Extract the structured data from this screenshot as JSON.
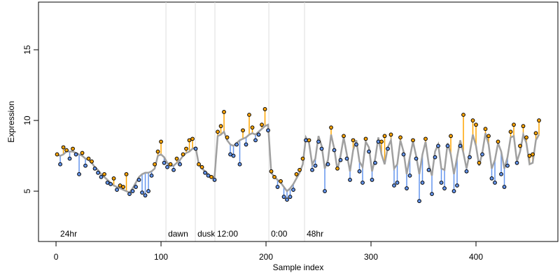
{
  "chart_data": {
    "type": "scatter",
    "x_label": "Sample index",
    "y_label": "Expression",
    "xlim": [
      -16.7,
      478
    ],
    "ylim": [
      1.44,
      18.37
    ],
    "xticks": [
      0,
      100,
      200,
      300,
      400
    ],
    "yticks": [
      5,
      10,
      15
    ],
    "colors": {
      "above": "#ffa500",
      "below": "#6495ed",
      "fit": "#a0a0a0",
      "point": "#000000",
      "marker": "#dddddd",
      "marker_text": "#aaaaaa"
    },
    "markers": [
      {
        "x": 2,
        "label": "24hr",
        "line": false
      },
      {
        "x": 104.7,
        "label": "dawn",
        "line": true
      },
      {
        "x": 132.7,
        "label": "dusk",
        "line": true
      },
      {
        "x": 151.3,
        "label": "12:00",
        "line": true
      },
      {
        "x": 202.7,
        "label": "0:00",
        "line": true
      },
      {
        "x": 236.7,
        "label": "48hr",
        "line": true
      }
    ],
    "x": [
      1,
      4,
      7,
      10,
      13,
      16,
      19,
      22,
      25,
      28,
      31,
      34,
      37,
      40,
      43,
      46,
      49,
      52,
      55,
      58,
      61,
      64,
      67,
      70,
      73,
      76,
      79,
      82,
      85,
      88,
      91,
      94,
      97,
      100,
      103,
      106,
      109,
      112,
      115,
      118,
      121,
      124,
      127,
      130,
      133,
      136,
      139,
      142,
      145,
      148,
      151,
      154,
      157,
      160,
      163,
      166,
      169,
      172,
      175,
      178,
      181,
      184,
      187,
      190,
      193,
      196,
      199,
      202,
      205,
      208,
      211,
      214,
      217,
      220,
      223,
      226,
      229,
      232,
      235,
      238,
      241,
      244,
      247,
      250,
      253,
      256,
      259,
      262,
      265,
      268,
      271,
      274,
      277,
      280,
      283,
      286,
      289,
      292,
      295,
      298,
      301,
      304,
      307,
      310,
      313,
      316,
      319,
      322,
      325,
      328,
      331,
      334,
      337,
      340,
      343,
      346,
      349,
      352,
      355,
      358,
      361,
      364,
      367,
      370,
      373,
      376,
      379,
      382,
      385,
      388,
      391,
      394,
      397,
      400,
      403,
      406,
      409,
      412,
      415,
      418,
      421,
      424,
      427,
      430,
      433,
      436,
      439,
      442,
      445,
      448,
      451,
      454,
      457,
      460
    ],
    "fitted": [
      7.6,
      7.5,
      7.6,
      7.8,
      7.8,
      7.8,
      7.7,
      7.6,
      7.5,
      7.3,
      7.2,
      7.0,
      6.7,
      6.5,
      6.2,
      6.0,
      5.8,
      5.6,
      5.4,
      5.3,
      5.2,
      5.1,
      5.0,
      4.9,
      5.2,
      5.6,
      6.0,
      6.2,
      6.3,
      6.3,
      6.4,
      6.6,
      7.5,
      7.6,
      7.4,
      7.0,
      6.8,
      6.8,
      7.0,
      7.2,
      7.5,
      7.7,
      7.8,
      8.0,
      8.1,
      6.9,
      6.6,
      6.4,
      6.2,
      6.0,
      6.0,
      8.9,
      9.0,
      9.2,
      8.6,
      8.3,
      8.2,
      8.4,
      8.6,
      8.7,
      8.8,
      9.0,
      9.1,
      9.0,
      9.2,
      9.4,
      9.6,
      9.7,
      6.3,
      6.0,
      5.8,
      5.6,
      5.3,
      5.0,
      5.2,
      5.5,
      5.9,
      6.3,
      6.9,
      8.8,
      8.4,
      6.9,
      7.3,
      8.9,
      8.2,
      6.6,
      7.2,
      9.0,
      8.0,
      6.5,
      7.5,
      8.8,
      7.6,
      6.4,
      7.9,
      8.6,
      7.1,
      6.7,
      8.5,
      8.1,
      6.4,
      7.3,
      8.8,
      7.6,
      6.9,
      8.1,
      8.6,
      6.6,
      6.9,
      8.6,
      7.8,
      6.2,
      7.4,
      8.5,
      7.5,
      6.2,
      7.6,
      8.5,
      6.9,
      6.1,
      7.8,
      8.3,
      6.6,
      6.5,
      8.4,
      7.6,
      6.2,
      7.4,
      8.6,
      7.7,
      6.6,
      7.7,
      9.0,
      8.2,
      6.8,
      7.7,
      9.1,
      8.3,
      6.6,
      7.2,
      8.4,
      7.8,
      6.6,
      7.4,
      8.8,
      8.9,
      7.1,
      7.8,
      9.0,
      8.4,
      6.9,
      7.0,
      8.6,
      9.0
    ],
    "observed": [
      7.6,
      6.9,
      8.1,
      7.9,
      7.3,
      8.0,
      7.6,
      6.2,
      7.7,
      6.8,
      7.3,
      7.1,
      6.6,
      6.3,
      6.0,
      6.2,
      5.6,
      5.5,
      5.9,
      5.1,
      5.4,
      5.3,
      6.2,
      4.8,
      5.0,
      5.3,
      5.8,
      4.9,
      4.7,
      5.0,
      6.1,
      6.9,
      7.8,
      8.5,
      7.0,
      6.7,
      6.9,
      6.5,
      7.3,
      6.9,
      7.6,
      8.0,
      8.6,
      8.7,
      8.0,
      6.9,
      6.7,
      6.3,
      6.1,
      6.0,
      5.8,
      9.2,
      9.6,
      10.6,
      8.8,
      7.6,
      7.5,
      8.3,
      6.9,
      9.3,
      8.3,
      10.4,
      9.5,
      8.6,
      9.0,
      9.7,
      10.8,
      9.3,
      6.4,
      6.0,
      5.3,
      5.7,
      4.6,
      4.4,
      4.6,
      5.1,
      6.2,
      6.5,
      7.3,
      8.6,
      8.6,
      6.5,
      6.8,
      8.5,
      8.0,
      5.0,
      6.9,
      9.5,
      7.9,
      6.6,
      7.2,
      8.9,
      7.3,
      5.8,
      8.6,
      8.3,
      6.4,
      5.6,
      8.7,
      7.8,
      5.8,
      7.0,
      8.5,
      8.5,
      8.9,
      8.0,
      9.0,
      5.4,
      5.6,
      8.8,
      7.6,
      5.2,
      6.1,
      8.6,
      7.3,
      4.3,
      5.6,
      8.7,
      6.5,
      4.8,
      7.4,
      8.2,
      5.6,
      5.2,
      8.2,
      8.9,
      5.0,
      5.4,
      8.2,
      10.4,
      6.4,
      7.4,
      10.0,
      9.7,
      7.0,
      7.6,
      9.4,
      8.9,
      5.9,
      5.6,
      8.5,
      6.2,
      5.3,
      6.8,
      9.2,
      9.7,
      7.0,
      8.2,
      9.6,
      8.8,
      7.5,
      7.6,
      9.1,
      10.0
    ]
  }
}
